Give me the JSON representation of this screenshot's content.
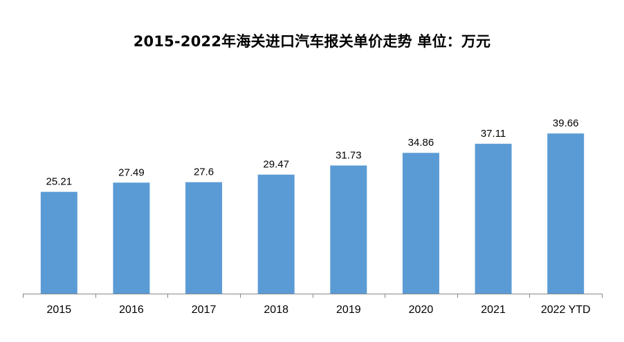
{
  "chart_data": {
    "type": "bar",
    "title": "2015-2022年海关进口汽车报关单价走势   单位：万元",
    "categories": [
      "2015",
      "2016",
      "2017",
      "2018",
      "2019",
      "2020",
      "2021",
      "2022 YTD"
    ],
    "values": [
      25.21,
      27.49,
      27.6,
      29.47,
      31.73,
      34.86,
      37.11,
      39.66
    ],
    "value_labels": [
      "25.21",
      "27.49",
      "27.6",
      "29.47",
      "31.73",
      "34.86",
      "37.11",
      "39.66"
    ],
    "xlabel": "",
    "ylabel": "",
    "ylim": [
      0,
      45
    ],
    "grid": false,
    "legend": "none",
    "bar_color": "#5B9BD5",
    "axis_color": "#868686"
  }
}
